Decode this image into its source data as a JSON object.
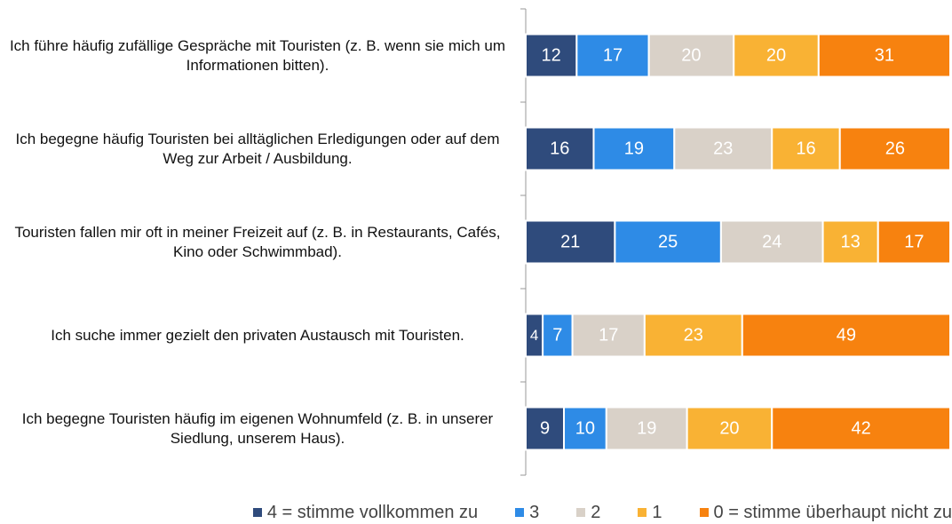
{
  "chart_data": {
    "type": "stacked_barh",
    "categories": [
      "Ich führe häufig zufällige Gespräche mit Touristen (z. B. wenn sie mich um Informationen bitten).",
      "Ich begegne häufig Touristen bei alltäglichen Erledigungen oder auf dem Weg zur Arbeit / Ausbildung.",
      "Touristen fallen mir oft in meiner Freizeit auf (z. B. in Restaurants, Cafés, Kino oder Schwimmbad).",
      "Ich suche immer gezielt den privaten Austausch mit Touristen.",
      "Ich begegne Touristen häufig im eigenen Wohnumfeld (z. B. in unserer Siedlung, unserem Haus)."
    ],
    "series": [
      {
        "name": "4 = stimme vollkommen zu",
        "color": "#2f4b7c",
        "values": [
          12,
          16,
          21,
          4,
          9
        ]
      },
      {
        "name": "3",
        "color": "#2e8be6",
        "values": [
          17,
          19,
          25,
          7,
          10
        ]
      },
      {
        "name": "2",
        "color": "#d9d1c8",
        "values": [
          20,
          23,
          24,
          17,
          19
        ]
      },
      {
        "name": "1",
        "color": "#f9b234",
        "values": [
          20,
          16,
          13,
          23,
          20
        ]
      },
      {
        "name": "0 = stimme überhaupt nicht zu",
        "color": "#f7820f",
        "values": [
          31,
          26,
          17,
          49,
          42
        ]
      }
    ],
    "xlim": [
      0,
      100
    ],
    "legend": "bottom"
  }
}
